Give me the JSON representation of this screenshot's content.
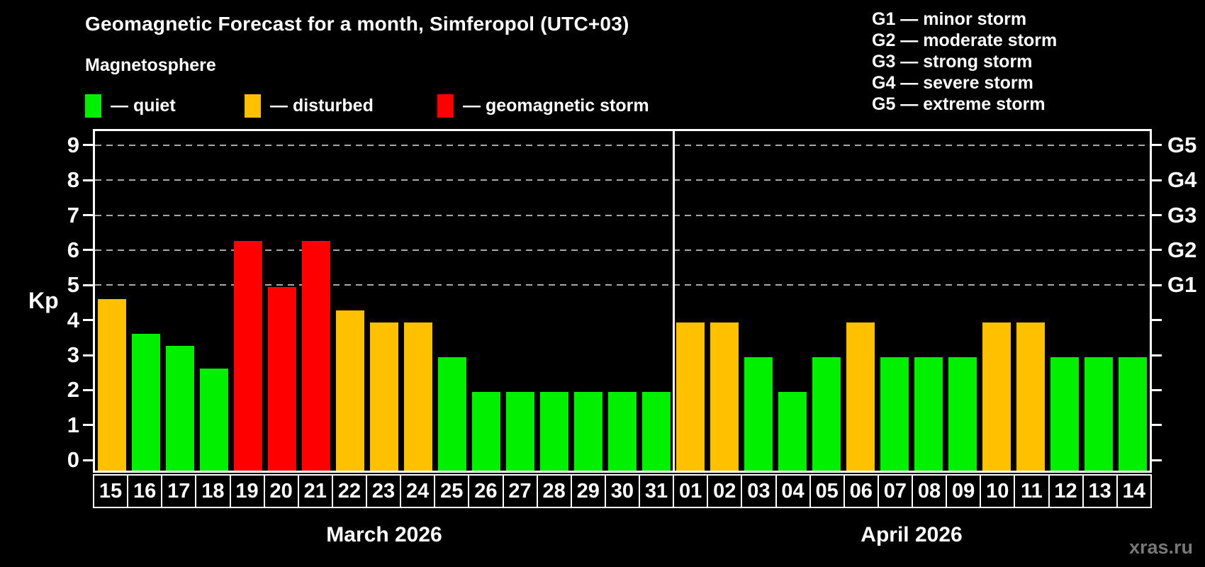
{
  "header": {
    "title": "Geomagnetic Forecast for a month, Simferopol (UTC+03)",
    "subtitle": "Magnetosphere",
    "watermark": "xras.ru"
  },
  "legend": {
    "items": [
      {
        "key": "quiet",
        "label": "— quiet",
        "color": "#00f000"
      },
      {
        "key": "disturbed",
        "label": "— disturbed",
        "color": "#ffc000"
      },
      {
        "key": "storm",
        "label": "— geomagnetic storm",
        "color": "#ff0000"
      }
    ]
  },
  "g_legend": {
    "lines": [
      "G1 — minor storm",
      "G2 — moderate storm",
      "G3 — strong storm",
      "G4 — severe storm",
      "G5 — extreme storm"
    ]
  },
  "chart_data": {
    "type": "bar",
    "title": "Geomagnetic Forecast for a month, Simferopol (UTC+03)",
    "ylabel": "Kp",
    "ylim": [
      -0.3,
      9.4
    ],
    "y_ticks": [
      0,
      1,
      2,
      3,
      4,
      5,
      6,
      7,
      8,
      9
    ],
    "gridlines_at": [
      5,
      6,
      7,
      8,
      9
    ],
    "grid": "dashed, horizontal only, Kp 5-9",
    "legend_position": "top-left (status colors), top-right (G scale)",
    "right_axis_labels": [
      {
        "value": 5,
        "label": "G1"
      },
      {
        "value": 6,
        "label": "G2"
      },
      {
        "value": 7,
        "label": "G3"
      },
      {
        "value": 8,
        "label": "G4"
      },
      {
        "value": 9,
        "label": "G5"
      }
    ],
    "months": [
      {
        "label": "March 2026",
        "days": [
          {
            "day": "15",
            "kp": 4.67,
            "status": "disturbed"
          },
          {
            "day": "16",
            "kp": 3.67,
            "status": "quiet"
          },
          {
            "day": "17",
            "kp": 3.33,
            "status": "quiet"
          },
          {
            "day": "18",
            "kp": 2.67,
            "status": "quiet"
          },
          {
            "day": "19",
            "kp": 6.33,
            "status": "storm"
          },
          {
            "day": "20",
            "kp": 5.0,
            "status": "storm"
          },
          {
            "day": "21",
            "kp": 6.33,
            "status": "storm"
          },
          {
            "day": "22",
            "kp": 4.33,
            "status": "disturbed"
          },
          {
            "day": "23",
            "kp": 4.0,
            "status": "disturbed"
          },
          {
            "day": "24",
            "kp": 4.0,
            "status": "disturbed"
          },
          {
            "day": "25",
            "kp": 3.0,
            "status": "quiet"
          },
          {
            "day": "26",
            "kp": 2.0,
            "status": "quiet"
          },
          {
            "day": "27",
            "kp": 2.0,
            "status": "quiet"
          },
          {
            "day": "28",
            "kp": 2.0,
            "status": "quiet"
          },
          {
            "day": "29",
            "kp": 2.0,
            "status": "quiet"
          },
          {
            "day": "30",
            "kp": 2.0,
            "status": "quiet"
          },
          {
            "day": "31",
            "kp": 2.0,
            "status": "quiet"
          }
        ]
      },
      {
        "label": "April 2026",
        "days": [
          {
            "day": "01",
            "kp": 4.0,
            "status": "disturbed"
          },
          {
            "day": "02",
            "kp": 4.0,
            "status": "disturbed"
          },
          {
            "day": "03",
            "kp": 3.0,
            "status": "quiet"
          },
          {
            "day": "04",
            "kp": 2.0,
            "status": "quiet"
          },
          {
            "day": "05",
            "kp": 3.0,
            "status": "quiet"
          },
          {
            "day": "06",
            "kp": 4.0,
            "status": "disturbed"
          },
          {
            "day": "07",
            "kp": 3.0,
            "status": "quiet"
          },
          {
            "day": "08",
            "kp": 3.0,
            "status": "quiet"
          },
          {
            "day": "09",
            "kp": 3.0,
            "status": "quiet"
          },
          {
            "day": "10",
            "kp": 4.0,
            "status": "disturbed"
          },
          {
            "day": "11",
            "kp": 4.0,
            "status": "disturbed"
          },
          {
            "day": "12",
            "kp": 3.0,
            "status": "quiet"
          },
          {
            "day": "13",
            "kp": 3.0,
            "status": "quiet"
          },
          {
            "day": "14",
            "kp": 3.0,
            "status": "quiet"
          }
        ]
      }
    ]
  }
}
